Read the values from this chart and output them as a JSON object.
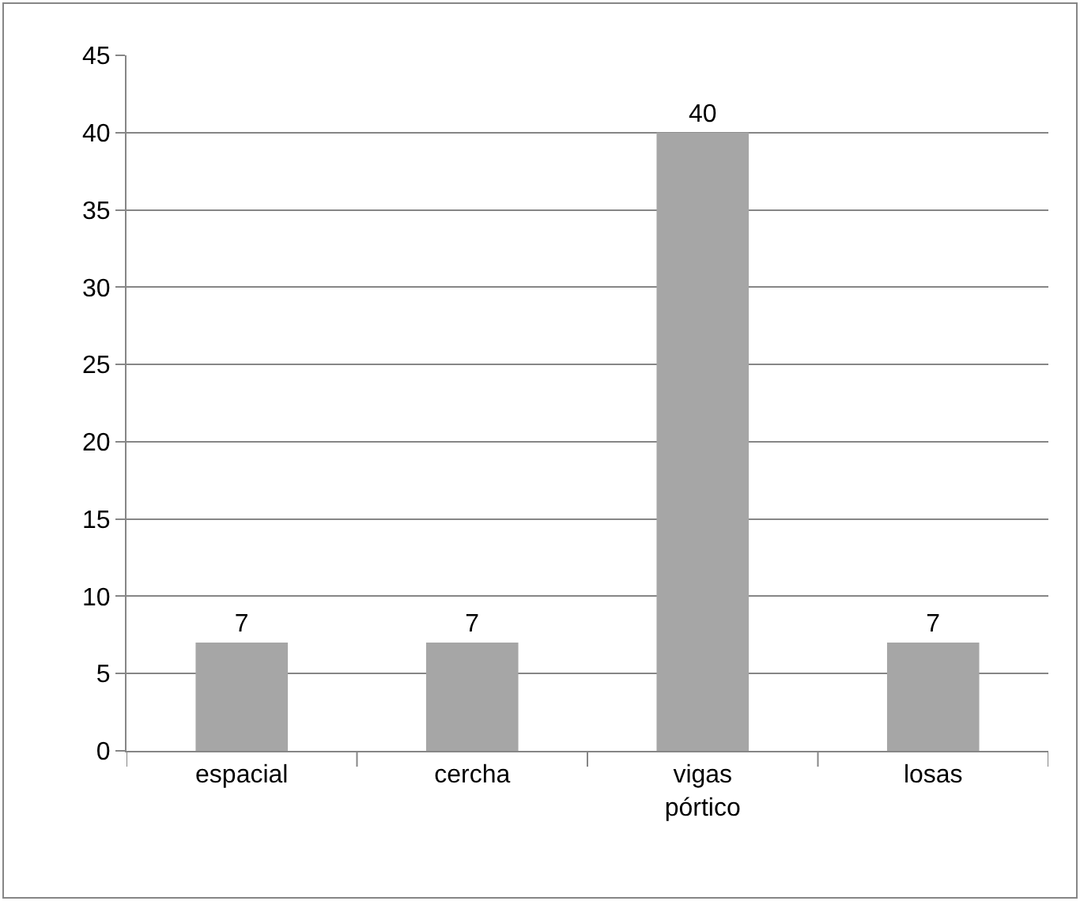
{
  "chart_data": {
    "type": "bar",
    "categories": [
      "espacial",
      "cercha",
      "vigas pórtico",
      "losas"
    ],
    "values": [
      7,
      7,
      40,
      7
    ],
    "color": "#a6a6a6",
    "ylim": [
      0,
      45
    ],
    "yticks": [
      0,
      5,
      10,
      15,
      20,
      25,
      30,
      35,
      40,
      45
    ],
    "grid": "y",
    "data_labels": true,
    "legend": false
  }
}
